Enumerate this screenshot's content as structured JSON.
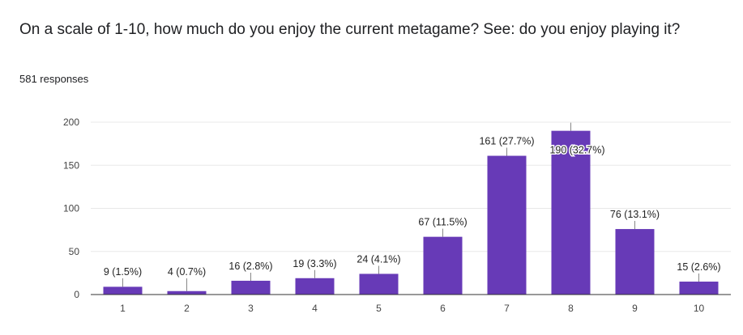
{
  "question": {
    "title": "On a scale of 1-10, how much do you enjoy the current metagame? See: do you enjoy playing it?",
    "responses": "581 responses"
  },
  "colors": {
    "bar": "#673ab7",
    "grid": "#e8e8e8",
    "axis": "#333333"
  },
  "chart_data": {
    "type": "bar",
    "title": "",
    "xlabel": "",
    "ylabel": "",
    "categories": [
      "1",
      "2",
      "3",
      "4",
      "5",
      "6",
      "7",
      "8",
      "9",
      "10"
    ],
    "values": [
      9,
      4,
      16,
      19,
      24,
      67,
      161,
      190,
      76,
      15
    ],
    "data_labels": [
      "9 (1.5%)",
      "4 (0.7%)",
      "16 (2.8%)",
      "19 (3.3%)",
      "24 (4.1%)",
      "67 (11.5%)",
      "161 (27.7%)",
      "190 (32.7%)",
      "76 (13.1%)",
      "15 (2.6%)"
    ],
    "ylim": [
      0,
      200
    ],
    "yticks": [
      0,
      50,
      100,
      150,
      200
    ],
    "grid": true,
    "legend": "none"
  }
}
